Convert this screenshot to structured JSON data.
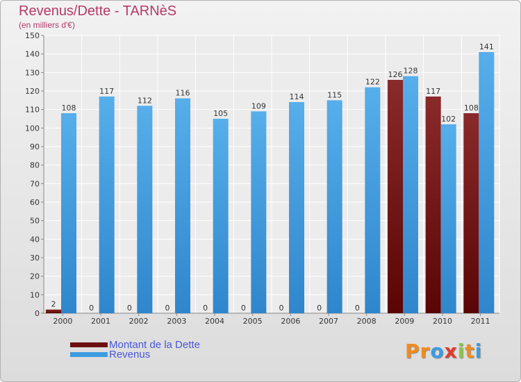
{
  "chart_data": {
    "type": "bar",
    "title": "Revenus/Dette - TARNèS",
    "subtitle": "(en milliers d'€)",
    "categories": [
      "2000",
      "2001",
      "2002",
      "2003",
      "2004",
      "2005",
      "2006",
      "2007",
      "2008",
      "2009",
      "2010",
      "2011"
    ],
    "series": [
      {
        "name": "Montant de la Dette",
        "color": "#6b0f0f",
        "values": [
          2,
          0,
          0,
          0,
          0,
          0,
          0,
          0,
          0,
          126,
          117,
          108
        ]
      },
      {
        "name": "Revenus",
        "color": "#3d9be0",
        "values": [
          108,
          117,
          112,
          116,
          105,
          109,
          114,
          115,
          122,
          128,
          102,
          141
        ]
      }
    ],
    "ylim": [
      0,
      150
    ],
    "yticks": [
      0,
      10,
      20,
      30,
      40,
      50,
      60,
      70,
      80,
      90,
      100,
      110,
      120,
      130,
      140,
      150
    ],
    "grid": true,
    "legend_position": "bottom-left"
  },
  "legend": {
    "items": [
      {
        "label": "Montant de la Dette",
        "color": "#6b0f0f"
      },
      {
        "label": "Revenus",
        "color": "#3d9be0"
      }
    ]
  },
  "logo": {
    "letters": [
      "P",
      "r",
      "o",
      "x",
      "i",
      "t",
      "i"
    ],
    "colors": [
      "#f08c1e",
      "#f08c1e",
      "#3d9be0",
      "#e23a2a",
      "#8cc63f",
      "#f08c1e",
      "#3d9be0"
    ]
  }
}
